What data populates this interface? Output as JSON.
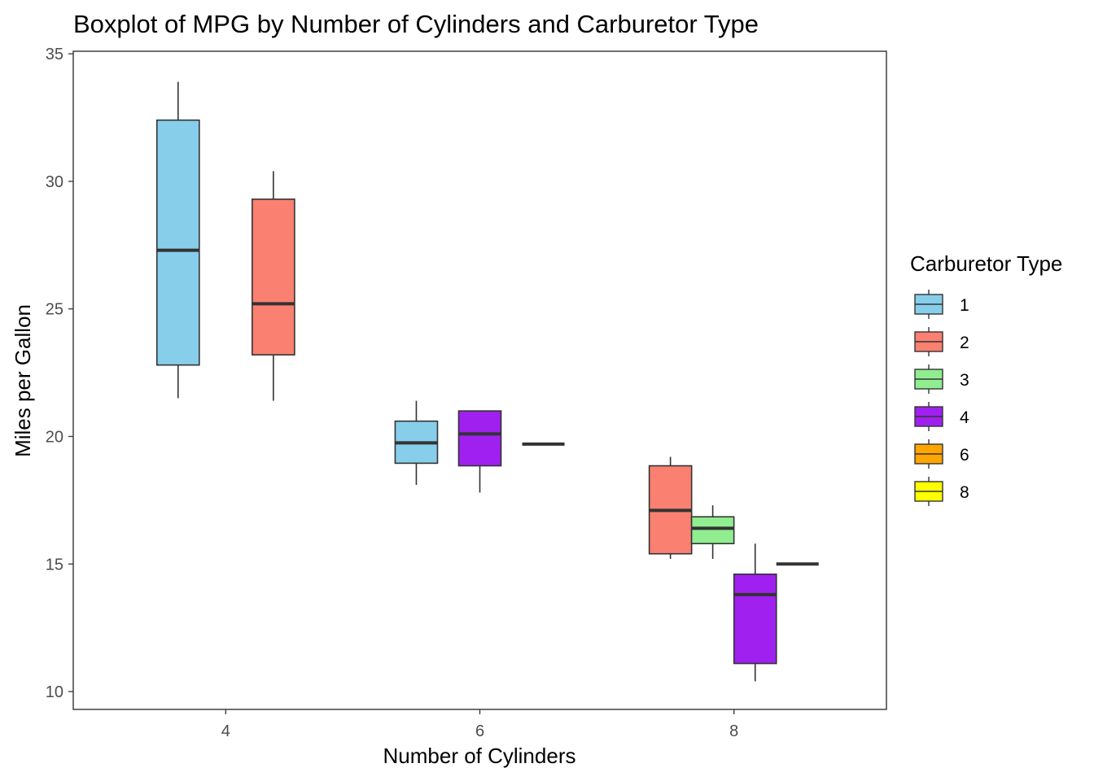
{
  "chart_data": {
    "type": "boxplot",
    "title": "Boxplot of MPG by Number of Cylinders and Carburetor Type",
    "xlabel": "Number of Cylinders",
    "ylabel": "Miles per Gallon",
    "x_ticks": [
      4,
      6,
      8
    ],
    "y_ticks": [
      10,
      15,
      20,
      25,
      30,
      35
    ],
    "xlim": [
      2.8,
      9.2
    ],
    "ylim": [
      9.3,
      35.1
    ],
    "legend": {
      "title": "Carburetor Type",
      "position": "right",
      "entries": [
        {
          "label": "1",
          "color": "#87CEEB"
        },
        {
          "label": "2",
          "color": "#FA8072"
        },
        {
          "label": "3",
          "color": "#90EE90"
        },
        {
          "label": "4",
          "color": "#A020F0"
        },
        {
          "label": "6",
          "color": "#FFA500"
        },
        {
          "label": "8",
          "color": "#FFFF00"
        }
      ]
    },
    "series": [
      {
        "cyl": 4,
        "carb": "1",
        "color": "#87CEEB",
        "x": 3.625,
        "min": 21.5,
        "q1": 22.8,
        "median": 27.3,
        "q3": 32.4,
        "max": 33.9
      },
      {
        "cyl": 4,
        "carb": "2",
        "color": "#FA8072",
        "x": 4.375,
        "min": 21.4,
        "q1": 23.2,
        "median": 25.2,
        "q3": 29.3,
        "max": 30.4
      },
      {
        "cyl": 6,
        "carb": "1",
        "color": "#87CEEB",
        "x": 5.5,
        "min": 18.1,
        "q1": 18.95,
        "median": 19.75,
        "q3": 20.6,
        "max": 21.4
      },
      {
        "cyl": 6,
        "carb": "4",
        "color": "#A020F0",
        "x": 6.0,
        "min": 17.8,
        "q1": 18.85,
        "median": 20.1,
        "q3": 21.0,
        "max": 21.0
      },
      {
        "cyl": 6,
        "carb": "6",
        "color": "#FFA500",
        "x": 6.5,
        "min": 19.7,
        "q1": 19.7,
        "median": 19.7,
        "q3": 19.7,
        "max": 19.7
      },
      {
        "cyl": 8,
        "carb": "2",
        "color": "#FA8072",
        "x": 7.5,
        "min": 15.2,
        "q1": 15.4,
        "median": 17.1,
        "q3": 18.85,
        "max": 19.2
      },
      {
        "cyl": 8,
        "carb": "3",
        "color": "#90EE90",
        "x": 7.833,
        "min": 15.2,
        "q1": 15.8,
        "median": 16.4,
        "q3": 16.85,
        "max": 17.3
      },
      {
        "cyl": 8,
        "carb": "4",
        "color": "#A020F0",
        "x": 8.167,
        "min": 10.4,
        "q1": 11.1,
        "median": 13.8,
        "q3": 14.6,
        "max": 15.8
      },
      {
        "cyl": 8,
        "carb": "8",
        "color": "#FFFF00",
        "x": 8.5,
        "min": 15.0,
        "q1": 15.0,
        "median": 15.0,
        "q3": 15.0,
        "max": 15.0
      }
    ]
  }
}
